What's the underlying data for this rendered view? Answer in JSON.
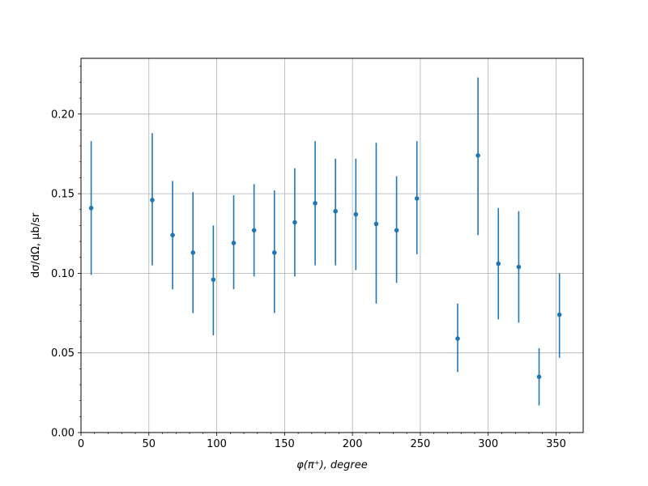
{
  "chart_data": {
    "type": "scatter",
    "title": "",
    "xlabel": "φ(π⁺), degree",
    "ylabel": "dσ/dΩ, μb/sr",
    "xlim": [
      0,
      370
    ],
    "ylim": [
      0,
      0.235
    ],
    "xticks": [
      0,
      50,
      100,
      150,
      200,
      250,
      300,
      350
    ],
    "xtick_labels": [
      "0",
      "50",
      "100",
      "150",
      "200",
      "250",
      "300",
      "350"
    ],
    "yticks": [
      0.0,
      0.05,
      0.1,
      0.15,
      0.2
    ],
    "ytick_labels": [
      "0.00",
      "0.05",
      "0.10",
      "0.15",
      "0.20"
    ],
    "grid": true,
    "color": "#1f77b4",
    "points": [
      {
        "x": 7.5,
        "y": 0.141,
        "err_low": 0.099,
        "err_high": 0.183
      },
      {
        "x": 52.5,
        "y": 0.146,
        "err_low": 0.105,
        "err_high": 0.188
      },
      {
        "x": 67.5,
        "y": 0.124,
        "err_low": 0.09,
        "err_high": 0.158
      },
      {
        "x": 82.5,
        "y": 0.113,
        "err_low": 0.075,
        "err_high": 0.151
      },
      {
        "x": 97.5,
        "y": 0.096,
        "err_low": 0.061,
        "err_high": 0.13
      },
      {
        "x": 112.5,
        "y": 0.119,
        "err_low": 0.09,
        "err_high": 0.149
      },
      {
        "x": 127.5,
        "y": 0.127,
        "err_low": 0.098,
        "err_high": 0.156
      },
      {
        "x": 142.5,
        "y": 0.113,
        "err_low": 0.075,
        "err_high": 0.152
      },
      {
        "x": 157.5,
        "y": 0.132,
        "err_low": 0.098,
        "err_high": 0.166
      },
      {
        "x": 172.5,
        "y": 0.144,
        "err_low": 0.105,
        "err_high": 0.183
      },
      {
        "x": 187.5,
        "y": 0.139,
        "err_low": 0.105,
        "err_high": 0.172
      },
      {
        "x": 202.5,
        "y": 0.137,
        "err_low": 0.102,
        "err_high": 0.172
      },
      {
        "x": 217.5,
        "y": 0.131,
        "err_low": 0.081,
        "err_high": 0.182
      },
      {
        "x": 232.5,
        "y": 0.127,
        "err_low": 0.094,
        "err_high": 0.161
      },
      {
        "x": 247.5,
        "y": 0.147,
        "err_low": 0.112,
        "err_high": 0.183
      },
      {
        "x": 277.5,
        "y": 0.059,
        "err_low": 0.038,
        "err_high": 0.081
      },
      {
        "x": 292.5,
        "y": 0.174,
        "err_low": 0.124,
        "err_high": 0.223
      },
      {
        "x": 307.5,
        "y": 0.106,
        "err_low": 0.071,
        "err_high": 0.141
      },
      {
        "x": 322.5,
        "y": 0.104,
        "err_low": 0.069,
        "err_high": 0.139
      },
      {
        "x": 337.5,
        "y": 0.035,
        "err_low": 0.017,
        "err_high": 0.053
      },
      {
        "x": 352.5,
        "y": 0.074,
        "err_low": 0.047,
        "err_high": 0.1
      }
    ]
  }
}
